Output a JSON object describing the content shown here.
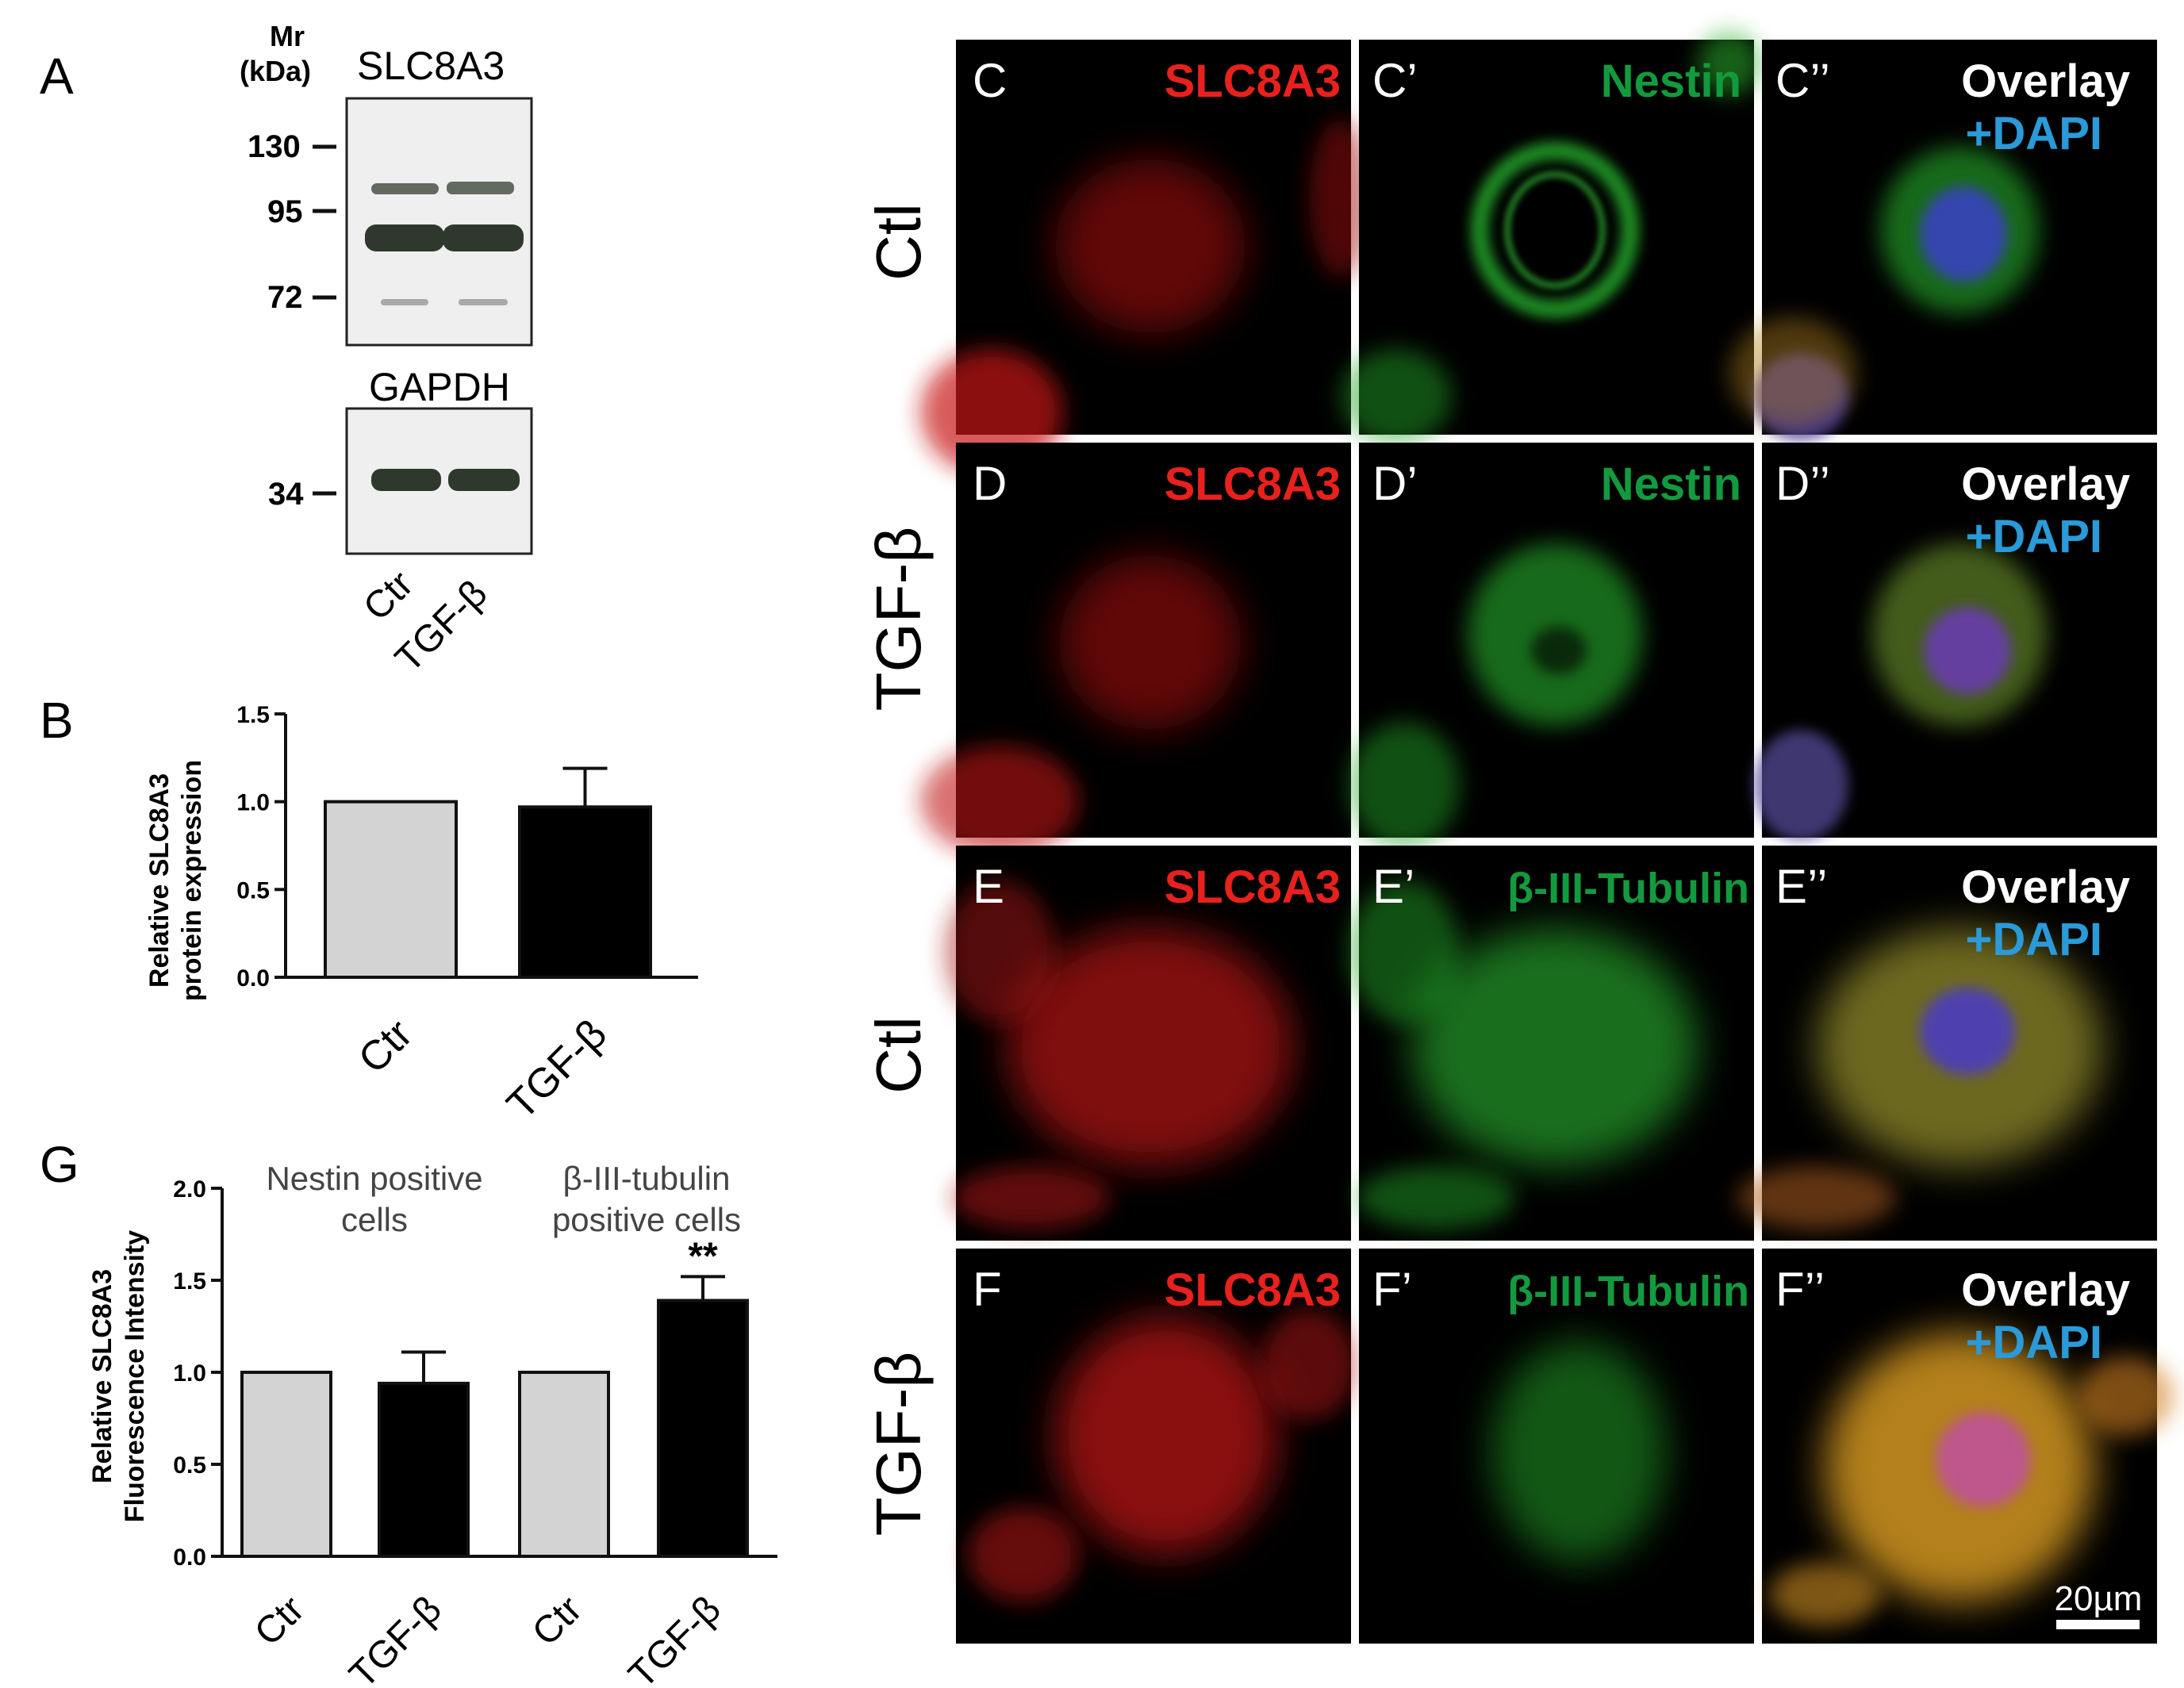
{
  "panel_letters": {
    "a": "A",
    "b": "B",
    "g": "G",
    "c": "C",
    "c1": "C’",
    "c2": "C’’",
    "d": "D",
    "d1": "D’",
    "d2": "D’’",
    "e": "E",
    "e1": "E’",
    "e2": "E’’",
    "f": "F",
    "f1": "F’",
    "f2": "F’’"
  },
  "western_blot": {
    "mr_title": "Mr",
    "mr_unit": "(kDa)",
    "top_protein": "SLC8A3",
    "bottom_protein": "GAPDH",
    "markers": [
      "130",
      "95",
      "72"
    ],
    "gapdh_marker": "34",
    "lanes": [
      "Ctr",
      "TGF-β"
    ]
  },
  "row_labels": [
    "Ctl",
    "TGF-β",
    "Ctl",
    "TGF-β"
  ],
  "micrograph_labels": {
    "red": "SLC8A3",
    "nestin": "Nestin",
    "tubulin": "β-III-Tubulin",
    "overlay": "Overlay",
    "dapi": "+DAPI"
  },
  "scale_bar": "20µm",
  "colors": {
    "red_label": "#e8211d",
    "green_label": "#129a3f",
    "white_label": "#ffffff",
    "blue_label": "#2a9ad8",
    "bar_ctr": "#d3d3d3",
    "bar_tgf": "#000000"
  },
  "chart_data": [
    {
      "panel": "B",
      "type": "bar",
      "categories": [
        "Ctr",
        "TGF-β"
      ],
      "values": [
        1.0,
        0.97
      ],
      "errors": [
        0,
        0.22
      ],
      "ylabel_line1": "Relative SLC8A3",
      "ylabel_line2": "protein expression",
      "yticks": [
        "0.0",
        "0.5",
        "1.0",
        "1.5"
      ],
      "ylim": [
        0,
        1.5
      ]
    },
    {
      "panel": "G",
      "type": "bar",
      "groups": [
        {
          "title_line1": "Nestin positive",
          "title_line2": "cells"
        },
        {
          "title_line1": "β-III-tubulin",
          "title_line2": "positive cells"
        }
      ],
      "categories": [
        "Ctr",
        "TGF-β",
        "Ctr",
        "TGF-β"
      ],
      "values": [
        1.0,
        0.94,
        1.0,
        1.39
      ],
      "errors": [
        0,
        0.17,
        0,
        0.13
      ],
      "annotation": "**",
      "ylabel_line1": "Relative SLC8A3",
      "ylabel_line2": "Fluorescence Intensity",
      "yticks": [
        "0.0",
        "0.5",
        "1.0",
        "1.5",
        "2.0"
      ],
      "ylim": [
        0,
        2.0
      ]
    }
  ]
}
